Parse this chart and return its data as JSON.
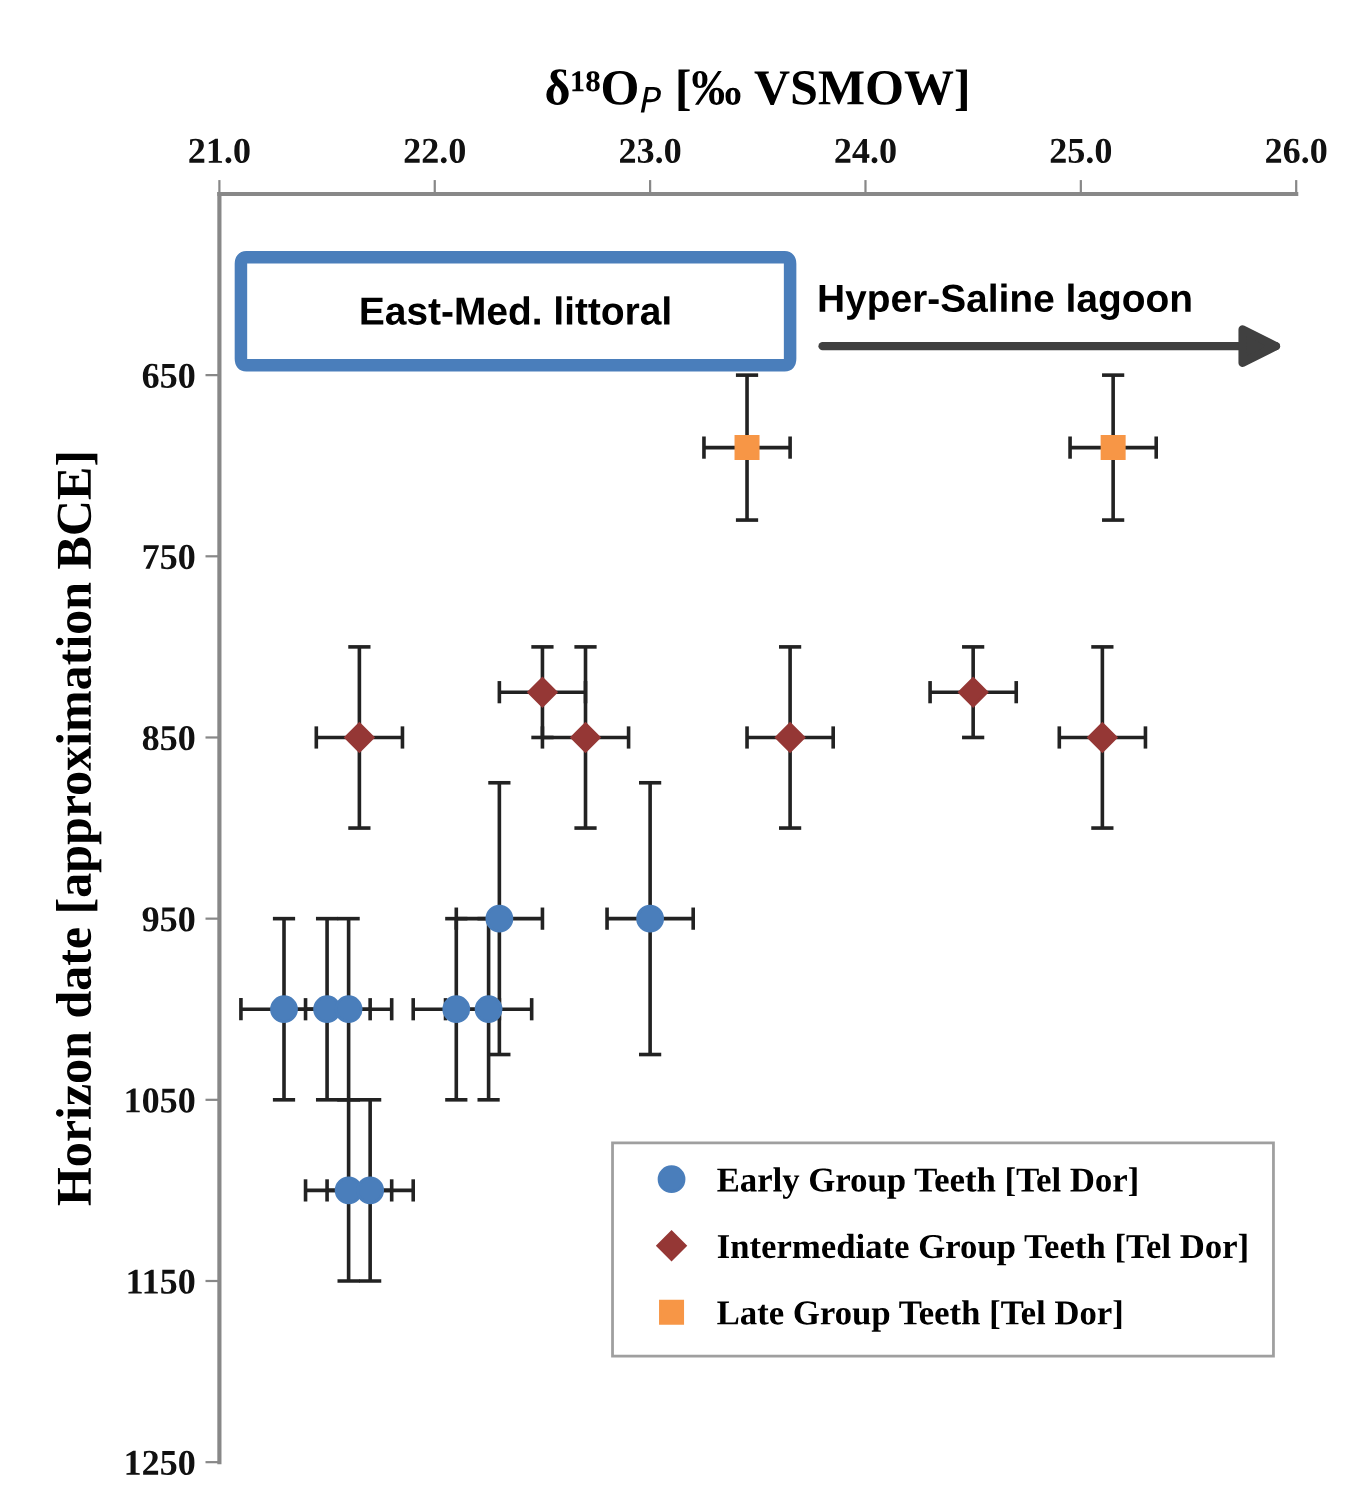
{
  "chart_data": {
    "type": "scatter",
    "xlabel": "δ¹⁸O$_{P}$ [‰ VSMOW]",
    "ylabel": "Horizon date [approximation BCE]",
    "xlim": [
      21.0,
      26.0
    ],
    "xticks": [
      {
        "value": 21,
        "label": "21.0"
      },
      {
        "value": 22,
        "label": "22.0"
      },
      {
        "value": 23,
        "label": "23.0"
      },
      {
        "value": 24,
        "label": "24.0"
      },
      {
        "value": 25,
        "label": "25.0"
      },
      {
        "value": 26,
        "label": "26.0"
      }
    ],
    "ylim": [
      1250,
      550
    ],
    "yticks": [
      650,
      750,
      850,
      950,
      1050,
      1150,
      1250
    ],
    "grid": false,
    "legend": "bottom right",
    "annotations": [
      "East-Med. littoral",
      "Hyper-Saline lagoon"
    ],
    "series": [
      {
        "name": "Early Group Teeth [Tel Dor]",
        "color": "#4a7ebb",
        "marker": "circle",
        "x": [
          21.3,
          21.5,
          21.6,
          22.1,
          22.25,
          22.3,
          23.0,
          21.6,
          21.7
        ],
        "values": [
          1000,
          1000,
          1000,
          1000,
          1000,
          950,
          950,
          1100,
          1100
        ],
        "errors": [
          50,
          50,
          50,
          50,
          50,
          75,
          75,
          50,
          50
        ],
        "xerrors": [
          0.2,
          0.2,
          0.2,
          0.2,
          0.2,
          0.2,
          0.2,
          0.2,
          0.2
        ]
      },
      {
        "name": "Intermediate Group Teeth [Tel Dor]",
        "color": "#953735",
        "marker": "diamond",
        "x": [
          21.65,
          22.5,
          22.7,
          23.65,
          24.5,
          25.1
        ],
        "values": [
          850,
          825,
          850,
          850,
          825,
          850
        ],
        "errors": [
          50,
          25,
          50,
          50,
          25,
          50
        ],
        "xerrors": [
          0.2,
          0.2,
          0.2,
          0.2,
          0.2,
          0.2
        ]
      },
      {
        "name": "Late Group Teeth [Tel Dor]",
        "color": "#f79646",
        "marker": "square",
        "x": [
          23.45,
          25.15
        ],
        "values": [
          690,
          690
        ],
        "errors": [
          40,
          40
        ],
        "xerrors": [
          0.2,
          0.2
        ]
      }
    ]
  }
}
